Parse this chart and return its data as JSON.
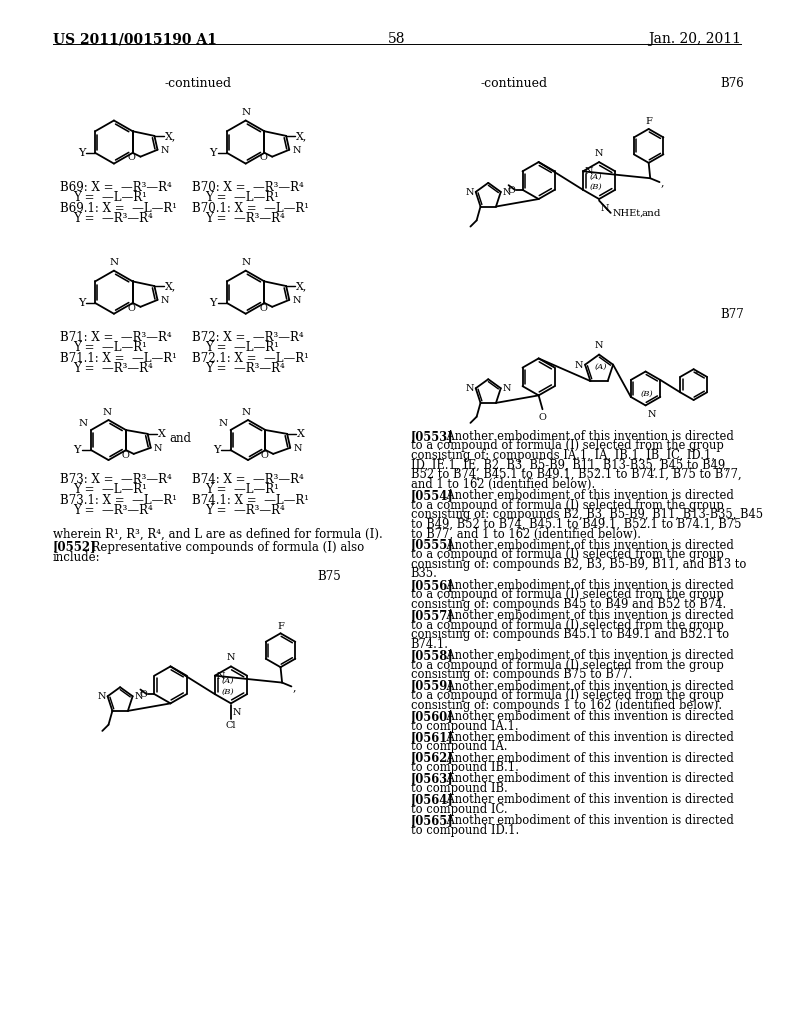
{
  "page_header_left": "US 2011/0015190 A1",
  "page_header_right": "Jan. 20, 2011",
  "page_number": "58",
  "background_color": "#ffffff",
  "left_continued": "-continued",
  "right_continued": "-continued",
  "B75_label": "B75",
  "B76_label": "B76",
  "B77_label": "B77",
  "footnote": "wherein R¹, R³, R⁴, and L are as defined for formula (I).",
  "para0552_bold": "[0552]",
  "para0552_rest": " Representative compounds of formula (I) also\ninclude:",
  "paragraphs": [
    {
      "num": "[0553]",
      "text": " Another embodiment of this invention is directed to a compound of formula (I) selected from the group consisting of: compounds IA.1, IA, IB.1, IB, IC, ID.1, ID, IE.1, IE, B2, B3, B5-B9, B11, B13-B35, B45 to B49, B52 to B74, B45.1 to B49.1, B52.1 to B74.1, B75 to B77, and 1 to 162 (identified below)."
    },
    {
      "num": "[0554]",
      "text": " Another embodiment of this invention is directed to a compound of formula (I) selected from the group consisting of: compounds B2, B3, B5-B9, B11, B13-B35, B45 to B49, B52 to B74, B45.1 to B49.1, B52.1 to B74.1, B75 to B77, and 1 to 162 (identified below)."
    },
    {
      "num": "[0555]",
      "text": " Another embodiment of this invention is directed to a compound of formula (I) selected from the group consisting of: compounds B2, B3, B5-B9, B11, and B13 to B35."
    },
    {
      "num": "[0556]",
      "text": " Another embodiment of this invention is directed to a compound of formula (I) selected from the group consisting of: compounds B45 to B49 and B52 to B74."
    },
    {
      "num": "[0557]",
      "text": " Another embodiment of this invention is directed to a compound of formula (I) selected from the group consisting of: compounds B45.1 to B49.1 and B52.1 to B74.1."
    },
    {
      "num": "[0558]",
      "text": " Another embodiment of this invention is directed to a compound of formula (I) selected from the group consisting of: compounds B75 to B77."
    },
    {
      "num": "[0559]",
      "text": " Another embodiment of this invention is directed to a compound of formula (I) selected from the group consisting of: compounds 1 to 162 (identified below)."
    },
    {
      "num": "[0560]",
      "text": " Another embodiment of this invention is directed to compound IA.1."
    },
    {
      "num": "[0561]",
      "text": " Another embodiment of this invention is directed to compound IA."
    },
    {
      "num": "[0562]",
      "text": " Another embodiment of this invention is directed to compound IB.1."
    },
    {
      "num": "[0563]",
      "text": " Another embodiment of this invention is directed to compound IB."
    },
    {
      "num": "[0564]",
      "text": " Another embodiment of this invention is directed to compound IC."
    },
    {
      "num": "[0565]",
      "text": " Another embodiment of this invention is directed to compound ID.1."
    }
  ]
}
